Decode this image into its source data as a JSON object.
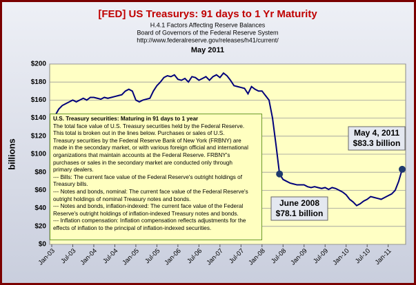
{
  "chart_data": {
    "type": "line",
    "title": "[FED] US Treasurys: 91 days to 1 Yr Maturity",
    "subtitles": [
      "H.4.1 Factors Affecting Reserve Balances",
      "Board of Governors of the Federal Reserve System",
      "http://www.federalreserve.gov/releases/h41/current/"
    ],
    "date": "May 2011",
    "y_label": "billions",
    "categories": [
      "Jan-03",
      null,
      null,
      null,
      null,
      null,
      "Jul-03",
      null,
      null,
      null,
      null,
      null,
      "Jan-04",
      null,
      null,
      null,
      null,
      null,
      "Jul-04",
      null,
      null,
      null,
      null,
      null,
      "Jan-05",
      null,
      null,
      null,
      null,
      null,
      "Jul-05",
      null,
      null,
      null,
      null,
      null,
      "Jan-06",
      null,
      null,
      null,
      null,
      null,
      "Jul-06",
      null,
      null,
      null,
      null,
      null,
      "Jan-07",
      null,
      null,
      null,
      null,
      null,
      "Jul-07",
      null,
      null,
      null,
      null,
      null,
      "Jan-08",
      null,
      null,
      null,
      null,
      null,
      "Jul-08",
      null,
      null,
      null,
      null,
      null,
      "Jan-09",
      null,
      null,
      null,
      null,
      null,
      "Jul-09",
      null,
      null,
      null,
      null,
      null,
      "Jan-10",
      null,
      null,
      null,
      null,
      null,
      "Jul-10",
      null,
      null,
      null,
      null,
      null,
      "Jan-11",
      null,
      null,
      null,
      null
    ],
    "series": [
      {
        "name": "U.S. Treasury securities: Maturing in 91 days to 1 year",
        "color": "#00007a",
        "values": [
          140,
          143,
          150,
          154,
          156,
          158,
          160,
          158,
          160,
          162,
          160,
          163,
          163,
          162,
          161,
          163,
          162,
          163,
          164,
          165,
          166,
          170,
          172,
          170,
          160,
          158,
          160,
          161,
          162,
          170,
          176,
          180,
          185,
          187,
          186,
          188,
          183,
          182,
          184,
          180,
          186,
          185,
          182,
          184,
          186,
          182,
          186,
          188,
          185,
          190,
          187,
          182,
          176,
          175,
          174,
          173,
          167,
          175,
          172,
          170,
          170,
          165,
          160,
          140,
          110,
          78.1,
          72,
          70,
          68,
          67,
          66,
          66,
          66,
          64,
          63,
          64,
          63,
          62,
          63,
          61,
          63,
          62,
          60,
          58,
          55,
          50,
          47,
          43,
          45,
          48,
          50,
          53,
          52,
          51,
          50,
          52,
          54,
          56,
          60,
          70,
          83.3
        ]
      }
    ],
    "ylim": [
      0,
      200
    ],
    "yticks": [
      {
        "value": 0,
        "label": "$0"
      },
      {
        "value": 20,
        "label": "$20"
      },
      {
        "value": 40,
        "label": "$40"
      },
      {
        "value": 60,
        "label": "$60"
      },
      {
        "value": 80,
        "label": "$80"
      },
      {
        "value": 100,
        "label": "$100"
      },
      {
        "value": 120,
        "label": "$120"
      },
      {
        "value": 140,
        "label": "$140"
      },
      {
        "value": 160,
        "label": "$160"
      },
      {
        "value": 180,
        "label": "$180"
      },
      {
        "value": 200,
        "label": "$200"
      }
    ],
    "grid": true,
    "highlights": [
      {
        "index": 65,
        "lines": [
          "June 2008",
          "$78.1 billion"
        ]
      },
      {
        "index": 100,
        "lines": [
          "May 4, 2011",
          "$83.3 billion"
        ]
      }
    ],
    "note": {
      "heading": "U.S. Treasury securities: Maturing in 91 days to 1 year",
      "lines": [
        "The total face value of U.S. Treasury securities held by the Federal Reserve.",
        "This total is broken out in the lines below. Purchases or sales of U.S.",
        "Treasury securities by the Federal Reserve Bank of New York (FRBNY) are",
        "made in the secondary market, or with various foreign official and international",
        "organizations that maintain accounts at the Federal Reserve. FRBNY's",
        "purchases or sales in the secondary market are conducted only through",
        "primary dealers.",
        "--- Bills: The current face value of the Federal Reserve's outright holdings of",
        "Treasury bills.",
        "--- Notes and bonds, nominal: The current face value of the Federal Reserve's",
        "outright holdings of nominal Treasury notes and bonds.",
        "--- Notes and bonds, inflation-indexed: The current face value of the Federal",
        "Reserve's outright holdings of inflation-indexed Treasury notes and bonds.",
        "--- Inflation compensation: Inflation compensation reflects adjustments for the",
        "effects of inflation to the principal of inflation-indexed securities."
      ]
    }
  }
}
